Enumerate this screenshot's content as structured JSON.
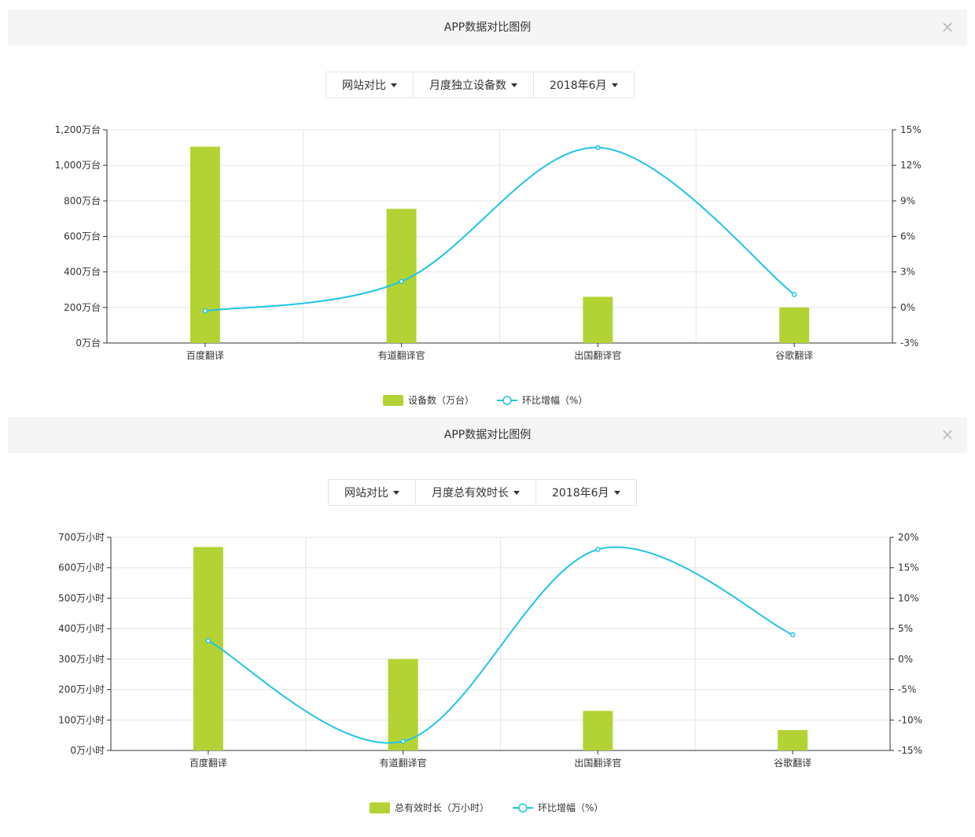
{
  "panels": [
    {
      "title": "APP数据对比图例",
      "close_label": "×",
      "selectors": [
        "网站对比",
        "月度独立设备数",
        "2018年6月"
      ]
    },
    {
      "title": "APP数据对比图例",
      "close_label": "×",
      "selectors": [
        "网站对比",
        "月度总有效时长",
        "2018年6月"
      ]
    }
  ],
  "colors": {
    "bar": "#b3d334",
    "line": "#21c4e8",
    "axis": "#333333",
    "grid": "#e6e6e6"
  },
  "chart_data": [
    {
      "type": "bar",
      "categories": [
        "百度翻译",
        "有道翻译官",
        "出国翻译官",
        "谷歌翻译"
      ],
      "series": [
        {
          "name": "设备数（万台）",
          "type": "bar",
          "axis": "left",
          "values": [
            1105,
            755,
            260,
            200
          ]
        },
        {
          "name": "环比增幅（%）",
          "type": "line",
          "axis": "right",
          "values": [
            -0.3,
            2.2,
            13.5,
            1.1
          ]
        }
      ],
      "y_left": {
        "ylim": [
          0,
          1200
        ],
        "ticks": [
          0,
          200,
          400,
          600,
          800,
          1000,
          1200
        ],
        "tick_labels": [
          "0万台",
          "200万台",
          "400万台",
          "600万台",
          "800万台",
          "1,000万台",
          "1,200万台"
        ]
      },
      "y_right": {
        "ylim": [
          -3,
          15
        ],
        "ticks": [
          -3,
          0,
          3,
          6,
          9,
          12,
          15
        ],
        "tick_labels": [
          "-3%",
          "0%",
          "3%",
          "6%",
          "9%",
          "12%",
          "15%"
        ]
      },
      "grid": true,
      "legend": "bottom-center"
    },
    {
      "type": "bar",
      "categories": [
        "百度翻译",
        "有道翻译官",
        "出国翻译官",
        "谷歌翻译"
      ],
      "series": [
        {
          "name": "总有效时长（万小时）",
          "type": "bar",
          "axis": "left",
          "values": [
            668,
            300,
            130,
            67
          ]
        },
        {
          "name": "环比增幅（%）",
          "type": "line",
          "axis": "right",
          "values": [
            3,
            -13.5,
            18,
            4
          ]
        }
      ],
      "y_left": {
        "ylim": [
          0,
          700
        ],
        "ticks": [
          0,
          100,
          200,
          300,
          400,
          500,
          600,
          700
        ],
        "tick_labels": [
          "0万小时",
          "100万小时",
          "200万小时",
          "300万小时",
          "400万小时",
          "500万小时",
          "600万小时",
          "700万小时"
        ]
      },
      "y_right": {
        "ylim": [
          -15,
          20
        ],
        "ticks": [
          -15,
          -10,
          -5,
          0,
          5,
          10,
          15,
          20
        ],
        "tick_labels": [
          "-15%",
          "-10%",
          "-5%",
          "0%",
          "5%",
          "10%",
          "15%",
          "20%"
        ]
      },
      "grid": true,
      "legend": "bottom-center"
    }
  ]
}
